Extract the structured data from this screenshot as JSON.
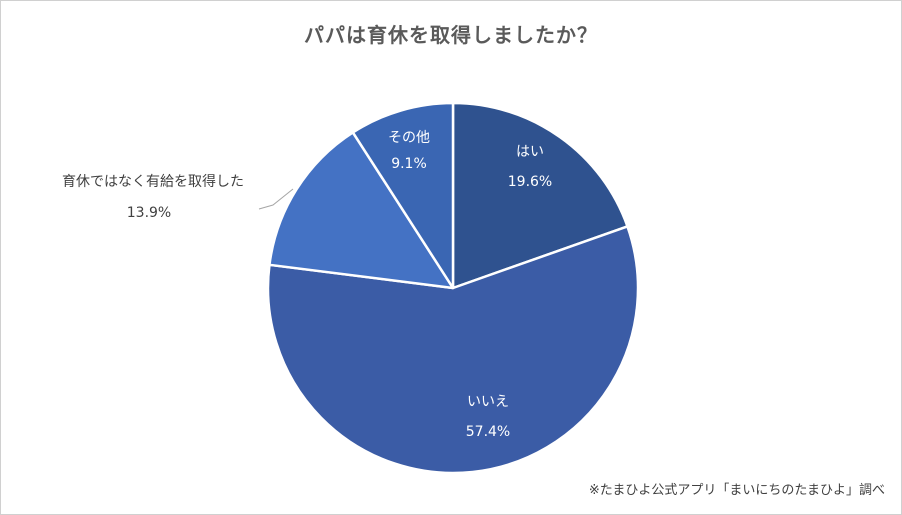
{
  "chart_data": {
    "type": "pie",
    "title": "パパは育休を取得しましたか？",
    "slices": [
      {
        "label": "はい",
        "value": 19.6,
        "value_label": "19.6%",
        "color": "#2f528f"
      },
      {
        "label": "いいえ",
        "value": 57.4,
        "value_label": "57.4%",
        "color": "#3b5ca6"
      },
      {
        "label": "育休ではなく有給を取得した",
        "value": 13.9,
        "value_label": "13.9%",
        "color": "#4472c4"
      },
      {
        "label": "その他",
        "value": 9.1,
        "value_label": "9.1%",
        "color": "#3a66b3"
      }
    ],
    "start": "12 o'clock",
    "direction": "clockwise",
    "legend": "none",
    "label_placement": "inside, except 育休ではなく有給を取得した outside-left with leader line",
    "source_note": "※たまひよ公式アプリ「まいにちのたまひよ」調べ"
  }
}
